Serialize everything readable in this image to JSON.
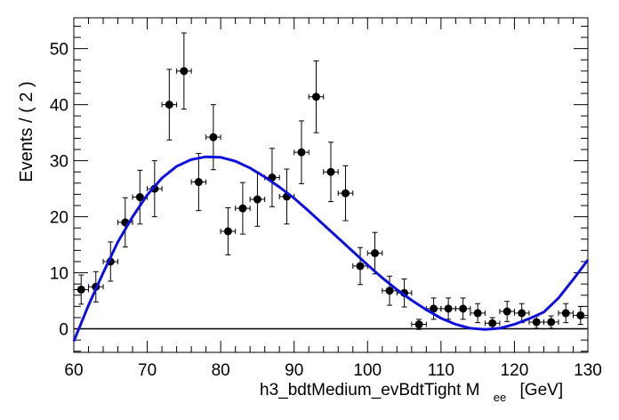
{
  "chart_data": {
    "type": "scatter",
    "title": "",
    "xlabel_main": "h3_bdtMedium_evBdtTight  M",
    "xlabel_sub": "ee",
    "xlabel_unit": "[GeV]",
    "ylabel": "Events / ( 2 )",
    "xlim": [
      60,
      130
    ],
    "ylim": [
      -4.2,
      55.5
    ],
    "x_ticks": [
      60,
      70,
      80,
      90,
      100,
      110,
      120,
      130
    ],
    "y_ticks": [
      0,
      10,
      20,
      30,
      40,
      50
    ],
    "bin_width": 2,
    "series": [
      {
        "name": "data",
        "kind": "points_with_errors",
        "x": [
          61,
          63,
          65,
          67,
          69,
          71,
          73,
          75,
          77,
          79,
          81,
          83,
          85,
          87,
          89,
          91,
          93,
          95,
          97,
          99,
          101,
          103,
          105,
          107,
          109,
          111,
          113,
          115,
          117,
          119,
          121,
          123,
          125,
          127,
          129
        ],
        "y": [
          7,
          7.5,
          12,
          19,
          23.5,
          25,
          40,
          46,
          26.2,
          34.2,
          17.4,
          21.5,
          23.1,
          27,
          23.6,
          31.5,
          41.4,
          28,
          24.2,
          11.2,
          13.5,
          6.8,
          6.4,
          0.8,
          3.6,
          3.6,
          3.6,
          2.8,
          1,
          3.1,
          2.8,
          1.2,
          1.2,
          2.8,
          2.4
        ],
        "yerr": [
          2.6,
          2.7,
          3.5,
          4.4,
          4.8,
          5.0,
          6.3,
          6.8,
          5.1,
          5.8,
          4.2,
          4.6,
          4.8,
          5.2,
          4.9,
          5.6,
          6.4,
          5.3,
          4.9,
          3.3,
          3.7,
          2.6,
          2.5,
          0.9,
          1.9,
          1.9,
          1.9,
          1.7,
          1.0,
          1.8,
          1.7,
          1.1,
          1.1,
          1.7,
          1.6
        ]
      },
      {
        "name": "fit",
        "kind": "line",
        "color": "#1010dd",
        "x": [
          60,
          62,
          64,
          66,
          68,
          70,
          72,
          74,
          76,
          78,
          80,
          82,
          84,
          86,
          88,
          90,
          92,
          94,
          96,
          98,
          100,
          102,
          104,
          106,
          108,
          110,
          112,
          114,
          116,
          118,
          120,
          122,
          124,
          126,
          128,
          130
        ],
        "y": [
          -2.2,
          4.2,
          10.0,
          15.5,
          20.0,
          23.9,
          26.9,
          29.0,
          30.2,
          30.7,
          30.6,
          29.9,
          28.7,
          27.1,
          25.3,
          23.3,
          21.0,
          18.6,
          16.2,
          13.8,
          11.4,
          9.1,
          7.0,
          5.1,
          3.4,
          1.9,
          0.8,
          0.1,
          -0.1,
          0.1,
          0.8,
          1.8,
          3.0,
          5.5,
          8.8,
          12.3
        ]
      }
    ],
    "zero_line": 0
  }
}
